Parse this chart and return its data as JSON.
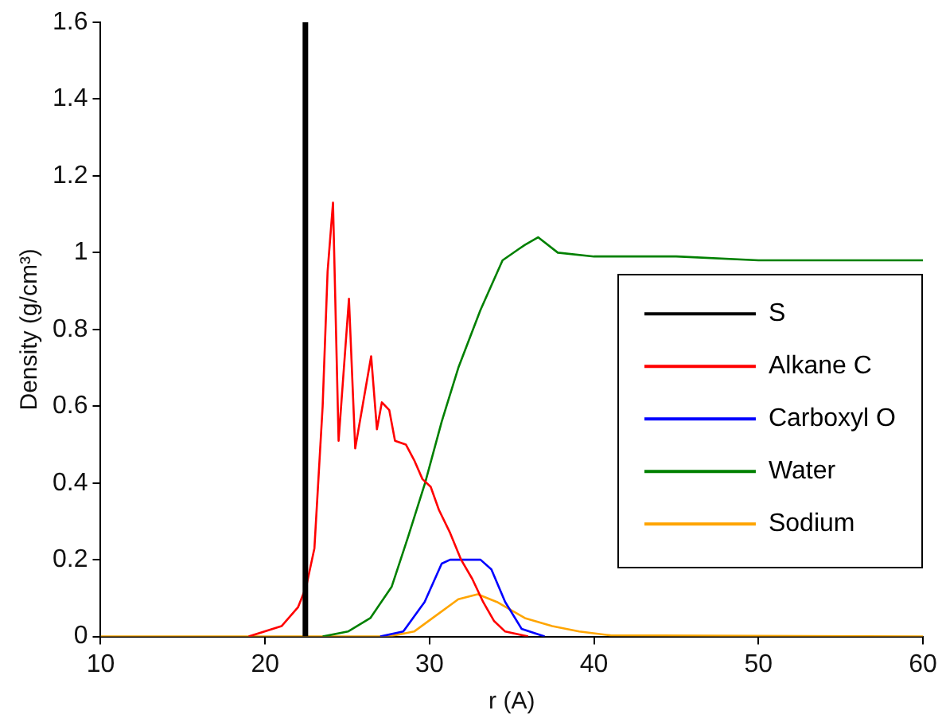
{
  "chart_data": {
    "type": "line",
    "xlabel": "r (A)",
    "ylabel": "Density (g/cm³)",
    "xlim": [
      10,
      60
    ],
    "ylim": [
      0,
      1.6
    ],
    "xticks": [
      10,
      20,
      30,
      40,
      50,
      60
    ],
    "yticks": [
      0,
      0.2,
      0.4,
      0.6,
      0.8,
      1,
      1.2,
      1.4,
      1.6
    ],
    "grid": false,
    "legend": "right",
    "marker": "none",
    "line_style": "solid",
    "series": [
      {
        "name": "S",
        "color": "#000000",
        "x": [
          22.45,
          22.45
        ],
        "values": [
          0,
          1.6
        ]
      },
      {
        "name": "Alkane C",
        "color": "#ff0000",
        "x": [
          19,
          21,
          22,
          22.5,
          23,
          23.5,
          23.8,
          24.13,
          24.47,
          25.1,
          25.48,
          26.45,
          26.8,
          27.1,
          27.55,
          27.9,
          28.56,
          29.06,
          29.57,
          30.07,
          30.57,
          31.25,
          31.92,
          32.6,
          33.26,
          33.93,
          34.6,
          36
        ],
        "values": [
          0,
          0.027,
          0.076,
          0.13,
          0.23,
          0.6,
          0.95,
          1.13,
          0.51,
          0.88,
          0.49,
          0.73,
          0.54,
          0.61,
          0.59,
          0.51,
          0.5,
          0.46,
          0.41,
          0.39,
          0.33,
          0.27,
          0.2,
          0.15,
          0.09,
          0.04,
          0.013,
          0
        ]
      },
      {
        "name": "Carboxyl O",
        "color": "#0000ff",
        "x": [
          27,
          28.4,
          29.7,
          30.74,
          31.25,
          33.1,
          33.76,
          34.6,
          35.6,
          37
        ],
        "values": [
          0,
          0.013,
          0.09,
          0.19,
          0.2,
          0.2,
          0.175,
          0.09,
          0.02,
          0
        ]
      },
      {
        "name": "Water",
        "color": "#008000",
        "x": [
          23.5,
          25.04,
          26.4,
          27.7,
          28.7,
          29.73,
          30.74,
          31.75,
          33.09,
          34.44,
          35.45,
          35.8,
          36.6,
          37.8,
          40,
          45,
          50,
          55,
          60
        ],
        "values": [
          0,
          0.013,
          0.048,
          0.13,
          0.26,
          0.4,
          0.56,
          0.7,
          0.85,
          0.98,
          1.01,
          1.02,
          1.04,
          1,
          0.99,
          0.99,
          0.98,
          0.98,
          0.98
        ]
      },
      {
        "name": "Sodium",
        "color": "#ffa500",
        "x": [
          10,
          27.5,
          29.06,
          30.4,
          31.75,
          32.93,
          34.1,
          35.8,
          37.46,
          39.1,
          41,
          60
        ],
        "values": [
          0,
          0,
          0.013,
          0.055,
          0.097,
          0.11,
          0.09,
          0.048,
          0.027,
          0.013,
          0.003,
          0
        ]
      }
    ]
  }
}
